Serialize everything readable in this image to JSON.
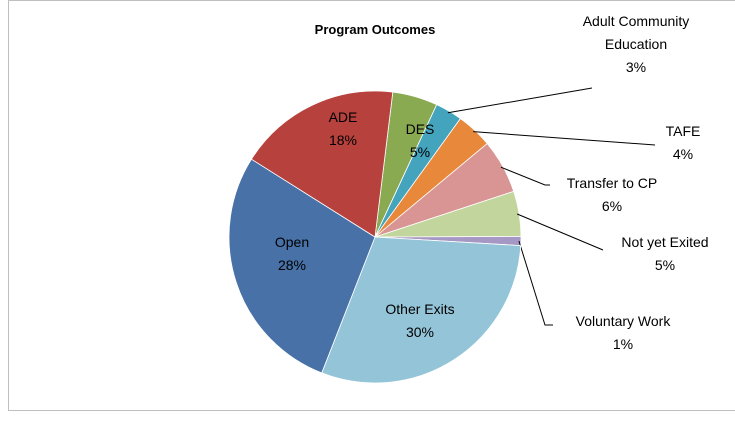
{
  "chart_data": {
    "type": "pie",
    "title": "Program Outcomes",
    "categories": [
      "DES",
      "Adult Community Education",
      "TAFE",
      "Transfer to CP",
      "Not yet Exited",
      "Voluntary Work",
      "Other Exits",
      "Open",
      "ADE"
    ],
    "values": [
      5,
      3,
      4,
      6,
      5,
      1,
      30,
      28,
      18
    ],
    "value_labels": [
      "5%",
      "3%",
      "4%",
      "6%",
      "5%",
      "1%",
      "30%",
      "28%",
      "18%"
    ],
    "colors": [
      "#8aaa52",
      "#44a3bd",
      "#e8883a",
      "#d99594",
      "#c1d59c",
      "#a698c5",
      "#93c4d8",
      "#4771a7",
      "#b6413d"
    ]
  }
}
